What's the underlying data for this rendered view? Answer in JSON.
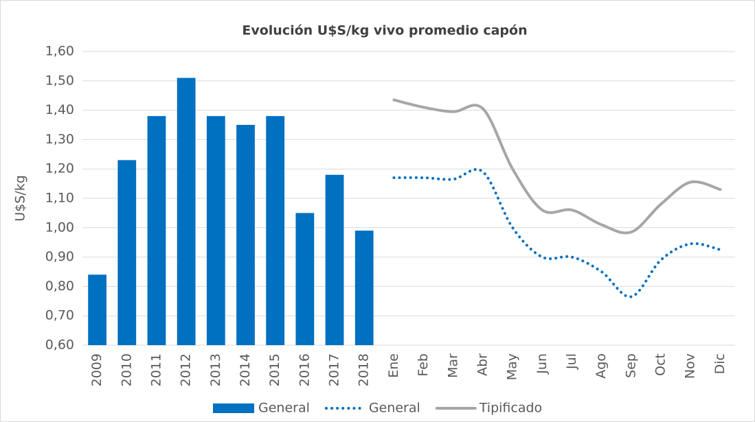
{
  "chart_data": {
    "type": "bar",
    "title": "Evolución U$S/kg vivo promedio capón",
    "y_label": "U$S/kg",
    "categories": [
      "2009",
      "2010",
      "2011",
      "2012",
      "2013",
      "2014",
      "2015",
      "2016",
      "2017",
      "2018",
      "Ene",
      "Feb",
      "Mar",
      "Abr",
      "May",
      "Jun",
      "Jul",
      "Ago",
      "Sep",
      "Oct",
      "Nov",
      "Dic"
    ],
    "series": [
      {
        "name": "General",
        "type": "bar",
        "color": "#0070c0",
        "values": [
          0.84,
          1.23,
          1.38,
          1.51,
          1.38,
          1.35,
          1.38,
          1.05,
          1.18,
          0.99,
          null,
          null,
          null,
          null,
          null,
          null,
          null,
          null,
          null,
          null,
          null,
          null
        ]
      },
      {
        "name": "General",
        "type": "line",
        "dash": "dotted",
        "color": "#0070c0",
        "values": [
          null,
          null,
          null,
          null,
          null,
          null,
          null,
          null,
          null,
          null,
          1.17,
          1.17,
          1.165,
          1.19,
          1.0,
          0.9,
          0.9,
          0.85,
          0.765,
          0.89,
          0.945,
          0.925
        ]
      },
      {
        "name": "Tipificado",
        "type": "line",
        "dash": "solid",
        "color": "#a6a6a6",
        "values": [
          null,
          null,
          null,
          null,
          null,
          null,
          null,
          null,
          null,
          null,
          1.435,
          1.41,
          1.395,
          1.405,
          1.2,
          1.06,
          1.06,
          1.01,
          0.985,
          1.08,
          1.155,
          1.13
        ]
      }
    ],
    "ylim": [
      0.6,
      1.6
    ],
    "yticks": [
      {
        "value": 0.6,
        "label": "0,60"
      },
      {
        "value": 0.7,
        "label": "0,70"
      },
      {
        "value": 0.8,
        "label": "0,80"
      },
      {
        "value": 0.9,
        "label": "0,90"
      },
      {
        "value": 1.0,
        "label": "1,00"
      },
      {
        "value": 1.1,
        "label": "1,10"
      },
      {
        "value": 1.2,
        "label": "1,20"
      },
      {
        "value": 1.3,
        "label": "1,30"
      },
      {
        "value": 1.4,
        "label": "1,40"
      },
      {
        "value": 1.5,
        "label": "1,50"
      },
      {
        "value": 1.6,
        "label": "1,60"
      }
    ],
    "grid": true,
    "legend": "bottom"
  }
}
